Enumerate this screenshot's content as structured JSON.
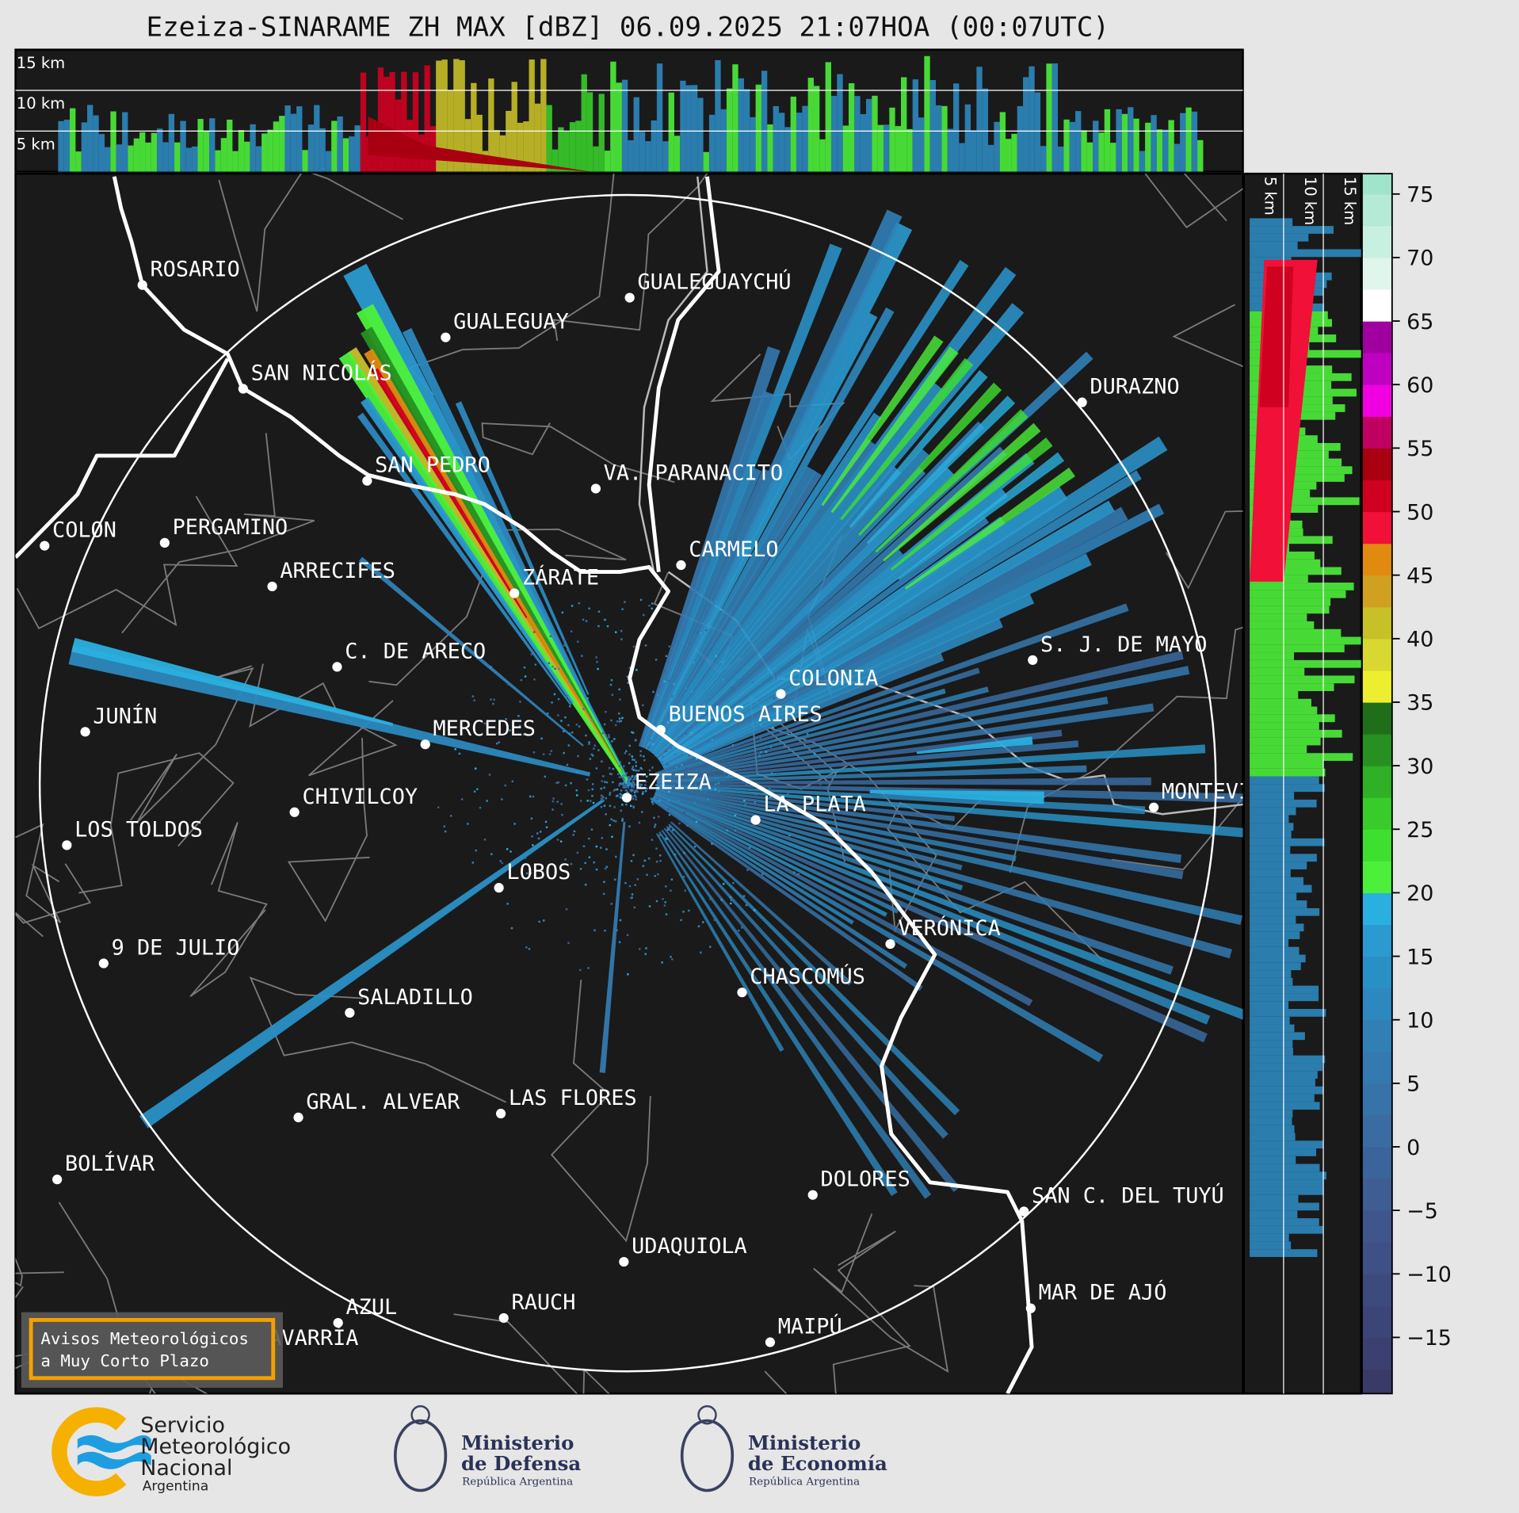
{
  "title": "Ezeiza-SINARAME ZH MAX [dBZ] 06.09.2025 21:07HOA (00:07UTC)",
  "top_panel": {
    "height_labels": [
      "15 km",
      "10 km",
      "5 km"
    ]
  },
  "side_panel": {
    "height_labels": [
      "5 km",
      "10 km",
      "15 km"
    ]
  },
  "colorbar": {
    "unit": "dBZ",
    "ticks": [
      "75",
      "70",
      "65",
      "60",
      "55",
      "50",
      "45",
      "40",
      "35",
      "30",
      "25",
      "20",
      "15",
      "10",
      "5",
      "0",
      "−5",
      "−10",
      "−15"
    ],
    "colors": [
      "#3a3a66",
      "#3b4070",
      "#3c4577",
      "#3d4a7e",
      "#3e5085",
      "#3e568c",
      "#3d5d93",
      "#3b649a",
      "#3a6ba1",
      "#3772a8",
      "#3479af",
      "#3080b6",
      "#2c88be",
      "#2990c6",
      "#2a9ad0",
      "#2ab0e0",
      "#4cf03a",
      "#3ee030",
      "#38cc2a",
      "#2fb026",
      "#269022",
      "#206e1a",
      "#eeee30",
      "#d8d830",
      "#c8c028",
      "#d0a020",
      "#e08a10",
      "#f01038",
      "#d00020",
      "#a80010",
      "#c00060",
      "#f000e0",
      "#c000c0",
      "#a000a0",
      "#ffffff",
      "#e0f5ec",
      "#c8f0e0",
      "#b4ead6",
      "#a0e4cc",
      "#8cdebe",
      "#88dcbc"
    ]
  },
  "cities": [
    "ROSARIO",
    "GUALEGUAYCHÚ",
    "GUALEGUAY",
    "SAN NICOLÁS",
    "DURAZNO",
    "SAN PEDRO",
    "VA. PARANACITO",
    "COLON",
    "PERGAMINO",
    "CARMELO",
    "ARRECIFES",
    "ZÁRATE",
    "S. J. DE MAYO",
    "C. DE ARECO",
    "COLONIA",
    "JUNÍN",
    "BUENOS AIRES",
    "MERCEDES",
    "EZEIZA",
    "MONTEVIDEO",
    "CHIVILCOY",
    "LA PLATA",
    "LOS TOLDOS",
    "LOBOS",
    "VERÓNICA",
    "9 DE JULIO",
    "CHASCOMÚS",
    "SALADILLO",
    "GRAL. ALVEAR",
    "LAS FLORES",
    "BOLÍVAR",
    "DOLORES",
    "SAN C. DEL TUYÚ",
    "UDAQUIOLA",
    "AZUL",
    "RAUCH",
    "OLAVARRÍA",
    "MAIPÚ",
    "MAR DE AJÓ"
  ],
  "alert_box": {
    "line1": "Avisos Meteorológicos",
    "line2": "a Muy Corto Plazo",
    "border_color": "#f5a000"
  },
  "footer": {
    "smn": {
      "line1": "Servicio",
      "line2": "Meteorológico",
      "line3": "Nacional",
      "line4": "Argentina"
    },
    "defensa": {
      "line1": "Ministerio",
      "line2": "de Defensa",
      "line3": "República Argentina"
    },
    "economia": {
      "line1": "Ministerio",
      "line2": "de Economía",
      "line3": "República Argentina"
    }
  }
}
